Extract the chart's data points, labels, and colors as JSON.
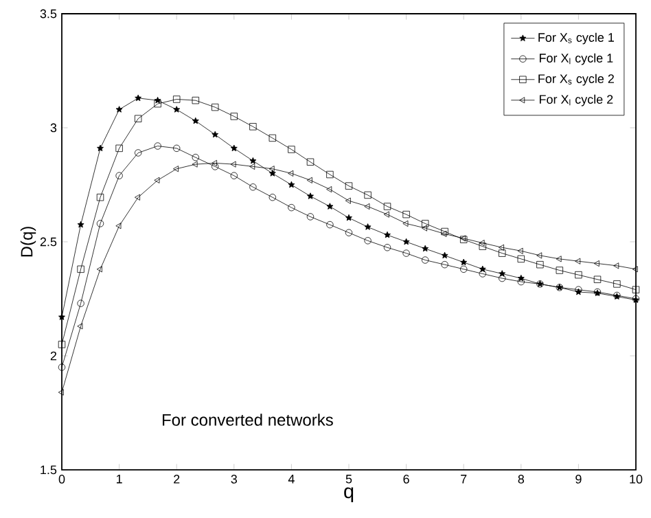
{
  "chart_data": {
    "type": "line",
    "xlabel": "q",
    "ylabel": "D(q)",
    "xlim": [
      0,
      10
    ],
    "ylim": [
      1.5,
      3.5
    ],
    "xticks": [
      0,
      1,
      2,
      3,
      4,
      5,
      6,
      7,
      8,
      9,
      10
    ],
    "yticks": [
      1.5,
      2,
      2.5,
      3,
      3.5
    ],
    "legend": "top right",
    "grid": false,
    "line_style": "solid",
    "x": [
      0,
      0.33,
      0.67,
      1,
      1.33,
      1.67,
      2,
      2.33,
      2.67,
      3,
      3.33,
      3.67,
      4,
      4.33,
      4.67,
      5,
      5.33,
      5.67,
      6,
      6.33,
      6.67,
      7,
      7.33,
      7.67,
      8,
      8.33,
      8.67,
      9,
      9.33,
      9.67,
      10
    ],
    "series": [
      {
        "name": "For X$_{s}$ cycle 1",
        "color": "#000000",
        "marker": "star",
        "values": [
          2.17,
          2.575,
          2.91,
          3.08,
          3.13,
          3.12,
          3.08,
          3.03,
          2.97,
          2.91,
          2.855,
          2.8,
          2.75,
          2.7,
          2.655,
          2.605,
          2.565,
          2.53,
          2.5,
          2.47,
          2.44,
          2.41,
          2.38,
          2.36,
          2.34,
          2.315,
          2.3,
          2.28,
          2.275,
          2.26,
          2.245
        ]
      },
      {
        "name": "For X$_{l}$ cycle 1",
        "color": "#000000",
        "marker": "circle",
        "values": [
          1.95,
          2.23,
          2.58,
          2.79,
          2.89,
          2.92,
          2.91,
          2.87,
          2.83,
          2.79,
          2.74,
          2.695,
          2.65,
          2.61,
          2.575,
          2.54,
          2.505,
          2.475,
          2.45,
          2.42,
          2.4,
          2.38,
          2.36,
          2.34,
          2.325,
          2.315,
          2.3,
          2.29,
          2.28,
          2.265,
          2.25
        ]
      },
      {
        "name": "For X$_{s}$ cycle 2",
        "color": "#000000",
        "marker": "square",
        "values": [
          2.05,
          2.38,
          2.695,
          2.91,
          3.04,
          3.105,
          3.125,
          3.12,
          3.09,
          3.05,
          3.005,
          2.955,
          2.905,
          2.85,
          2.795,
          2.745,
          2.705,
          2.655,
          2.62,
          2.58,
          2.545,
          2.51,
          2.48,
          2.45,
          2.425,
          2.4,
          2.375,
          2.355,
          2.335,
          2.315,
          2.29
        ]
      },
      {
        "name": "For X$_{l}$ cycle 2",
        "color": "#000000",
        "marker": "triangle",
        "values": [
          1.84,
          2.13,
          2.38,
          2.57,
          2.695,
          2.77,
          2.82,
          2.84,
          2.845,
          2.84,
          2.83,
          2.82,
          2.8,
          2.77,
          2.73,
          2.68,
          2.655,
          2.62,
          2.58,
          2.56,
          2.535,
          2.515,
          2.495,
          2.475,
          2.46,
          2.44,
          2.425,
          2.415,
          2.405,
          2.395,
          2.38
        ]
      }
    ],
    "annotations": [
      "For converted networks"
    ]
  }
}
